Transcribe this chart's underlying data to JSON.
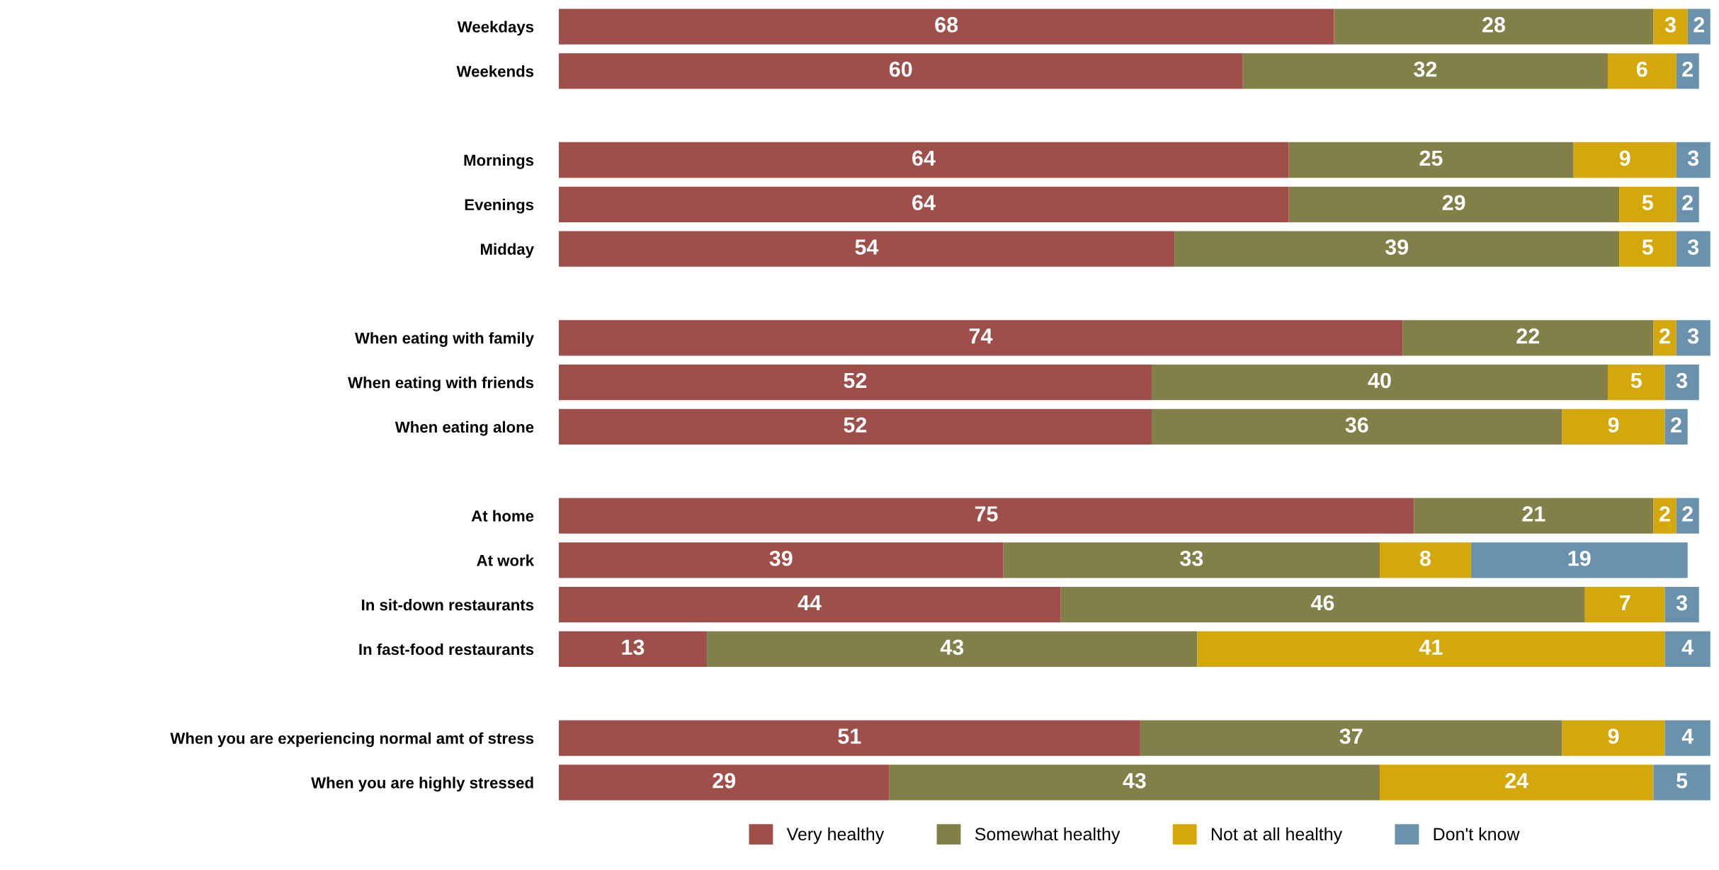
{
  "chart_data": {
    "type": "bar",
    "orientation": "horizontal",
    "stacked": true,
    "data_labels": true,
    "legend": "bottom",
    "grid": false,
    "categories": [
      "Weekdays",
      "Weekends",
      null,
      "Mornings",
      "Evenings",
      "Midday",
      null,
      "When eating with family",
      "When eating with friends",
      "When eating alone",
      null,
      "At home",
      "At work",
      "In sit-down restaurants",
      "In fast-food restaurants",
      null,
      "When you are experiencing normal amt of stress",
      "When you are highly stressed"
    ],
    "series": [
      {
        "name": "Very healthy",
        "color": "#9e4f4a",
        "values": [
          68,
          60,
          null,
          64,
          64,
          54,
          null,
          74,
          52,
          52,
          null,
          75,
          39,
          44,
          13,
          null,
          51,
          29
        ]
      },
      {
        "name": "Somewhat healthy",
        "color": "#828049",
        "values": [
          28,
          32,
          null,
          25,
          29,
          39,
          null,
          22,
          40,
          36,
          null,
          21,
          33,
          46,
          43,
          null,
          37,
          43
        ]
      },
      {
        "name": "Not at all healthy",
        "color": "#d4a70a",
        "values": [
          3,
          6,
          null,
          9,
          5,
          5,
          null,
          2,
          5,
          9,
          null,
          2,
          8,
          7,
          41,
          null,
          9,
          24
        ]
      },
      {
        "name": "Don't know",
        "color": "#6a92ac",
        "values": [
          2,
          2,
          null,
          3,
          2,
          3,
          null,
          3,
          3,
          2,
          null,
          2,
          19,
          3,
          4,
          null,
          4,
          5
        ]
      }
    ]
  }
}
